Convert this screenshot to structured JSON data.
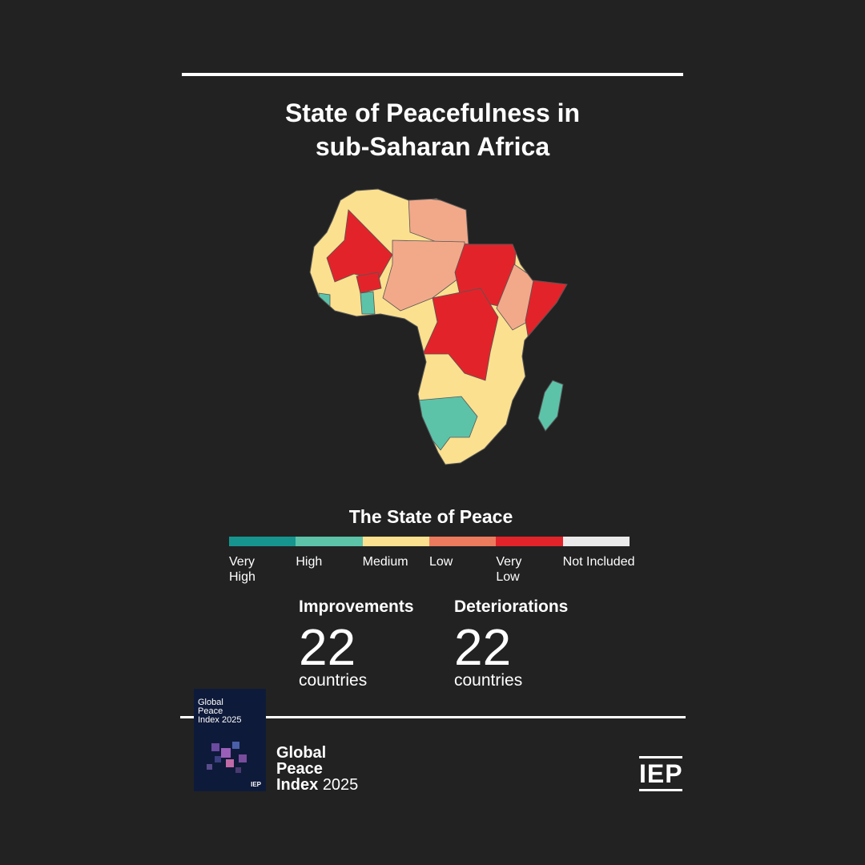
{
  "header": {
    "title_lines": [
      "State of Peacefulness in",
      "sub-Saharan Africa"
    ]
  },
  "legend": {
    "title": "The State of Peace",
    "items": [
      {
        "label": "Very High",
        "color": "#16958f"
      },
      {
        "label": "High",
        "color": "#5cc3a9"
      },
      {
        "label": "Medium",
        "color": "#fbe08f"
      },
      {
        "label": "Low",
        "color": "#ec7b5e"
      },
      {
        "label": "Very Low",
        "color": "#e2242a"
      },
      {
        "label": "Not Included",
        "color": "#eaeaea"
      }
    ]
  },
  "stats": [
    {
      "label": "Improvements",
      "value": 22,
      "unit": "countries"
    },
    {
      "label": "Deteriorations",
      "value": 22,
      "unit": "countries"
    }
  ],
  "cover": {
    "title_lines": [
      "Global",
      "Peace",
      "Index 2025"
    ]
  },
  "footer": {
    "brand_lines": [
      "Global",
      "Peace",
      "Index"
    ],
    "year": "2025",
    "logo": "IEP"
  }
}
